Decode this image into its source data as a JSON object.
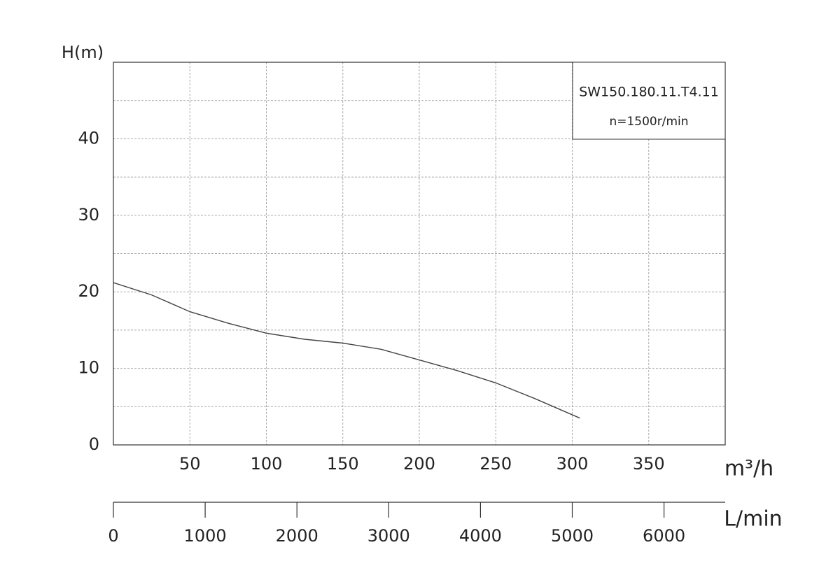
{
  "chart_data": {
    "type": "line",
    "title": "SW150.180.11.T4.11",
    "subtitle": "n=1500r/min",
    "y_label": "H(m)",
    "x_label": "m³/h",
    "x2_label": "L/min",
    "x": [
      0,
      25,
      50,
      75,
      100,
      125,
      150,
      175,
      200,
      225,
      250,
      275,
      305
    ],
    "series": [
      {
        "color": "#444444",
        "values": [
          21.2,
          19.6,
          17.4,
          15.9,
          14.6,
          13.8,
          13.3,
          12.5,
          11.1,
          9.7,
          8.1,
          6.1,
          3.5
        ]
      }
    ],
    "xlim": [
      0,
      400
    ],
    "xticks": [
      50,
      100,
      150,
      200,
      250,
      300,
      350
    ],
    "ylim": [
      0,
      50
    ],
    "yticks": [
      0,
      10,
      20,
      30,
      40
    ],
    "ygrid_minor": [
      5,
      15,
      25,
      35,
      45
    ],
    "x2lim": [
      0,
      6666.67
    ],
    "x2ticks": [
      0,
      1000,
      2000,
      3000,
      4000,
      5000,
      6000
    ],
    "grid": true
  }
}
